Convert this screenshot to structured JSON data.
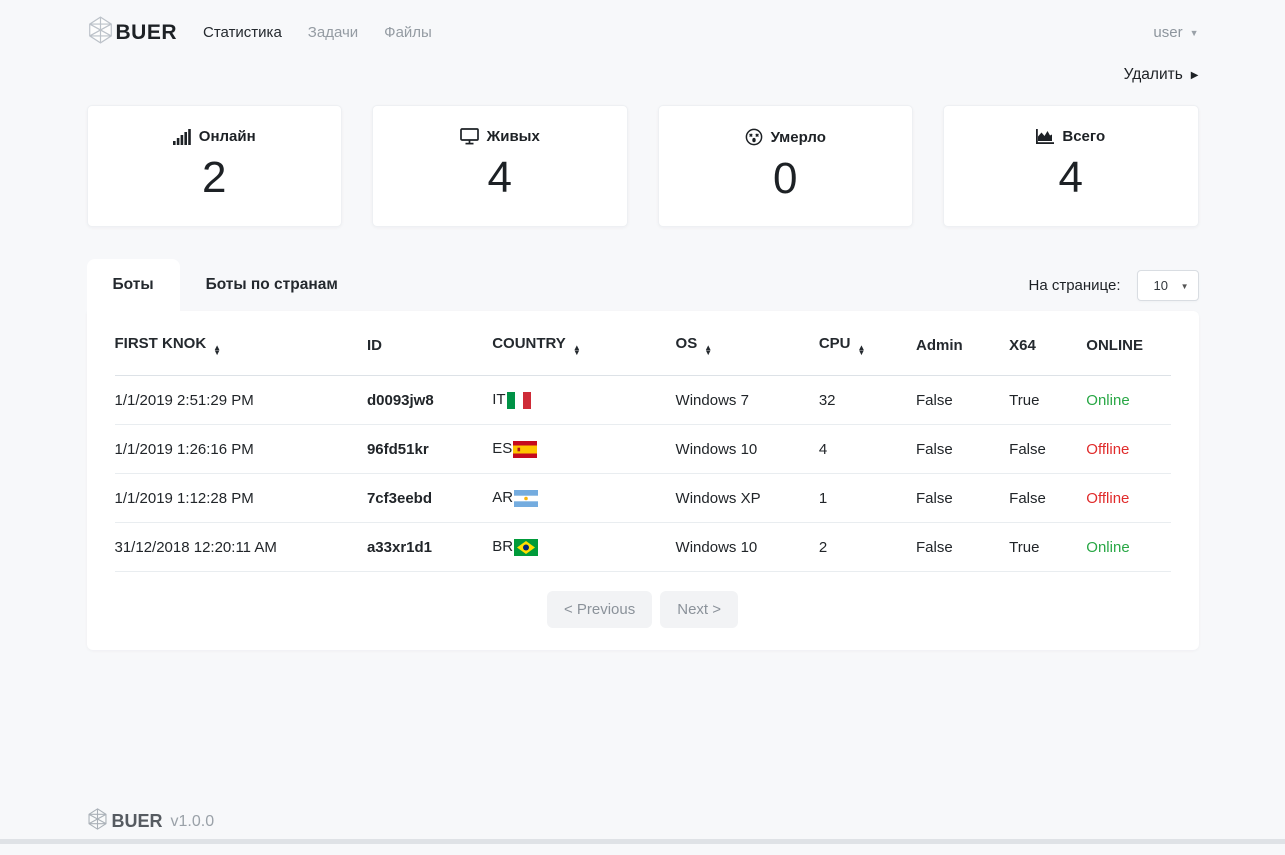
{
  "brand": {
    "name": "BUER",
    "version": "v1.0.0"
  },
  "nav": {
    "items": [
      {
        "label": "Статистика",
        "active": true
      },
      {
        "label": "Задачи",
        "active": false
      },
      {
        "label": "Файлы",
        "active": false
      }
    ],
    "user_label": "user"
  },
  "actions": {
    "delete_label": "Удалить"
  },
  "stats": [
    {
      "label": "Онлайн",
      "value": "2",
      "icon": "signal-bars-icon"
    },
    {
      "label": "Живых",
      "value": "4",
      "icon": "monitor-icon"
    },
    {
      "label": "Умерло",
      "value": "0",
      "icon": "dizzy-face-icon"
    },
    {
      "label": "Всего",
      "value": "4",
      "icon": "area-chart-icon"
    }
  ],
  "tabs": [
    {
      "label": "Боты",
      "active": true
    },
    {
      "label": "Боты по странам",
      "active": false
    }
  ],
  "per_page": {
    "label": "На странице:",
    "value": "10"
  },
  "table": {
    "columns": [
      {
        "label": "FIRST KNOK",
        "sortable": true
      },
      {
        "label": "ID",
        "sortable": false
      },
      {
        "label": "COUNTRY",
        "sortable": true
      },
      {
        "label": "OS",
        "sortable": true
      },
      {
        "label": "CPU",
        "sortable": true
      },
      {
        "label": "Admin",
        "sortable": false
      },
      {
        "label": "X64",
        "sortable": false
      },
      {
        "label": "ONLINE",
        "sortable": false
      }
    ],
    "rows": [
      {
        "first_knok": "1/1/2019 2:51:29 PM",
        "id": "d0093jw8",
        "country": "IT",
        "flag": "it",
        "os": "Windows 7",
        "cpu": "32",
        "admin": "False",
        "x64": "True",
        "online": "Online"
      },
      {
        "first_knok": "1/1/2019 1:26:16 PM",
        "id": "96fd51kr",
        "country": "ES",
        "flag": "es",
        "os": "Windows 10",
        "cpu": "4",
        "admin": "False",
        "x64": "False",
        "online": "Offline"
      },
      {
        "first_knok": "1/1/2019 1:12:28 PM",
        "id": "7cf3eebd",
        "country": "AR",
        "flag": "ar",
        "os": "Windows XP",
        "cpu": "1",
        "admin": "False",
        "x64": "False",
        "online": "Offline"
      },
      {
        "first_knok": "31/12/2018 12:20:11 AM",
        "id": "a33xr1d1",
        "country": "BR",
        "flag": "br",
        "os": "Windows 10",
        "cpu": "2",
        "admin": "False",
        "x64": "True",
        "online": "Online"
      }
    ]
  },
  "pagination": {
    "previous_label": "< Previous",
    "next_label": "Next >"
  },
  "colors": {
    "online": "#28a745",
    "offline": "#e02b2b"
  }
}
